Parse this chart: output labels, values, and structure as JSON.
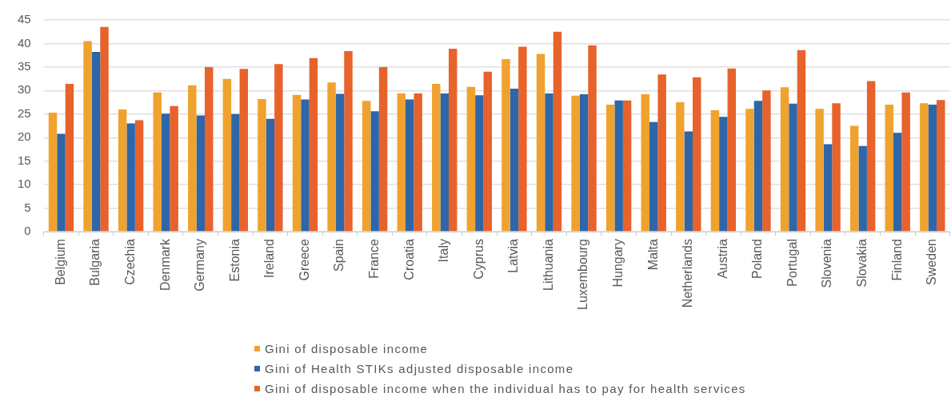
{
  "chart_data": {
    "type": "bar",
    "categories": [
      "Belgium",
      "Bulgaria",
      "Czechia",
      "Denmark",
      "Germany",
      "Estonia",
      "Ireland",
      "Greece",
      "Spain",
      "France",
      "Croatia",
      "Italy",
      "Cyprus",
      "Latvia",
      "Lithuania",
      "Luxembourg",
      "Hungary",
      "Malta",
      "Netherlands",
      "Austria",
      "Poland",
      "Portugal",
      "Slovenia",
      "Slovakia",
      "Finland",
      "Sweden"
    ],
    "series": [
      {
        "name": "Gini of disposable income",
        "color": "#f0a22e",
        "values": [
          25.3,
          40.5,
          26.0,
          29.6,
          31.1,
          32.5,
          28.2,
          29.1,
          31.7,
          27.8,
          29.4,
          31.4,
          30.8,
          36.7,
          37.8,
          28.9,
          27.0,
          29.2,
          27.5,
          25.8,
          26.1,
          30.7,
          26.1,
          22.5,
          27.0,
          27.3
        ]
      },
      {
        "name": "Gini of Health STIKs adjusted disposable income",
        "color": "#2e66a8",
        "values": [
          20.8,
          38.2,
          23.0,
          25.1,
          24.7,
          25.0,
          24.0,
          28.1,
          29.3,
          25.6,
          28.1,
          29.4,
          29.0,
          30.4,
          29.4,
          29.2,
          27.9,
          23.3,
          21.3,
          24.4,
          27.8,
          27.2,
          18.6,
          18.2,
          21.0,
          27.0
        ]
      },
      {
        "name": "Gini of disposable income when the individual has to pay for health services",
        "color": "#e8622c",
        "values": [
          31.4,
          43.5,
          23.7,
          26.7,
          35.0,
          34.6,
          35.6,
          36.9,
          38.4,
          35.0,
          29.4,
          38.9,
          34.0,
          39.3,
          42.5,
          39.6,
          27.9,
          33.4,
          32.8,
          34.7,
          30.0,
          38.6,
          27.3,
          32.0,
          29.6,
          28.0
        ]
      }
    ],
    "ylim": [
      0,
      45
    ],
    "yticks": [
      0,
      5,
      10,
      15,
      20,
      25,
      30,
      35,
      40,
      45
    ],
    "grid": "y",
    "legend": "bottom"
  }
}
